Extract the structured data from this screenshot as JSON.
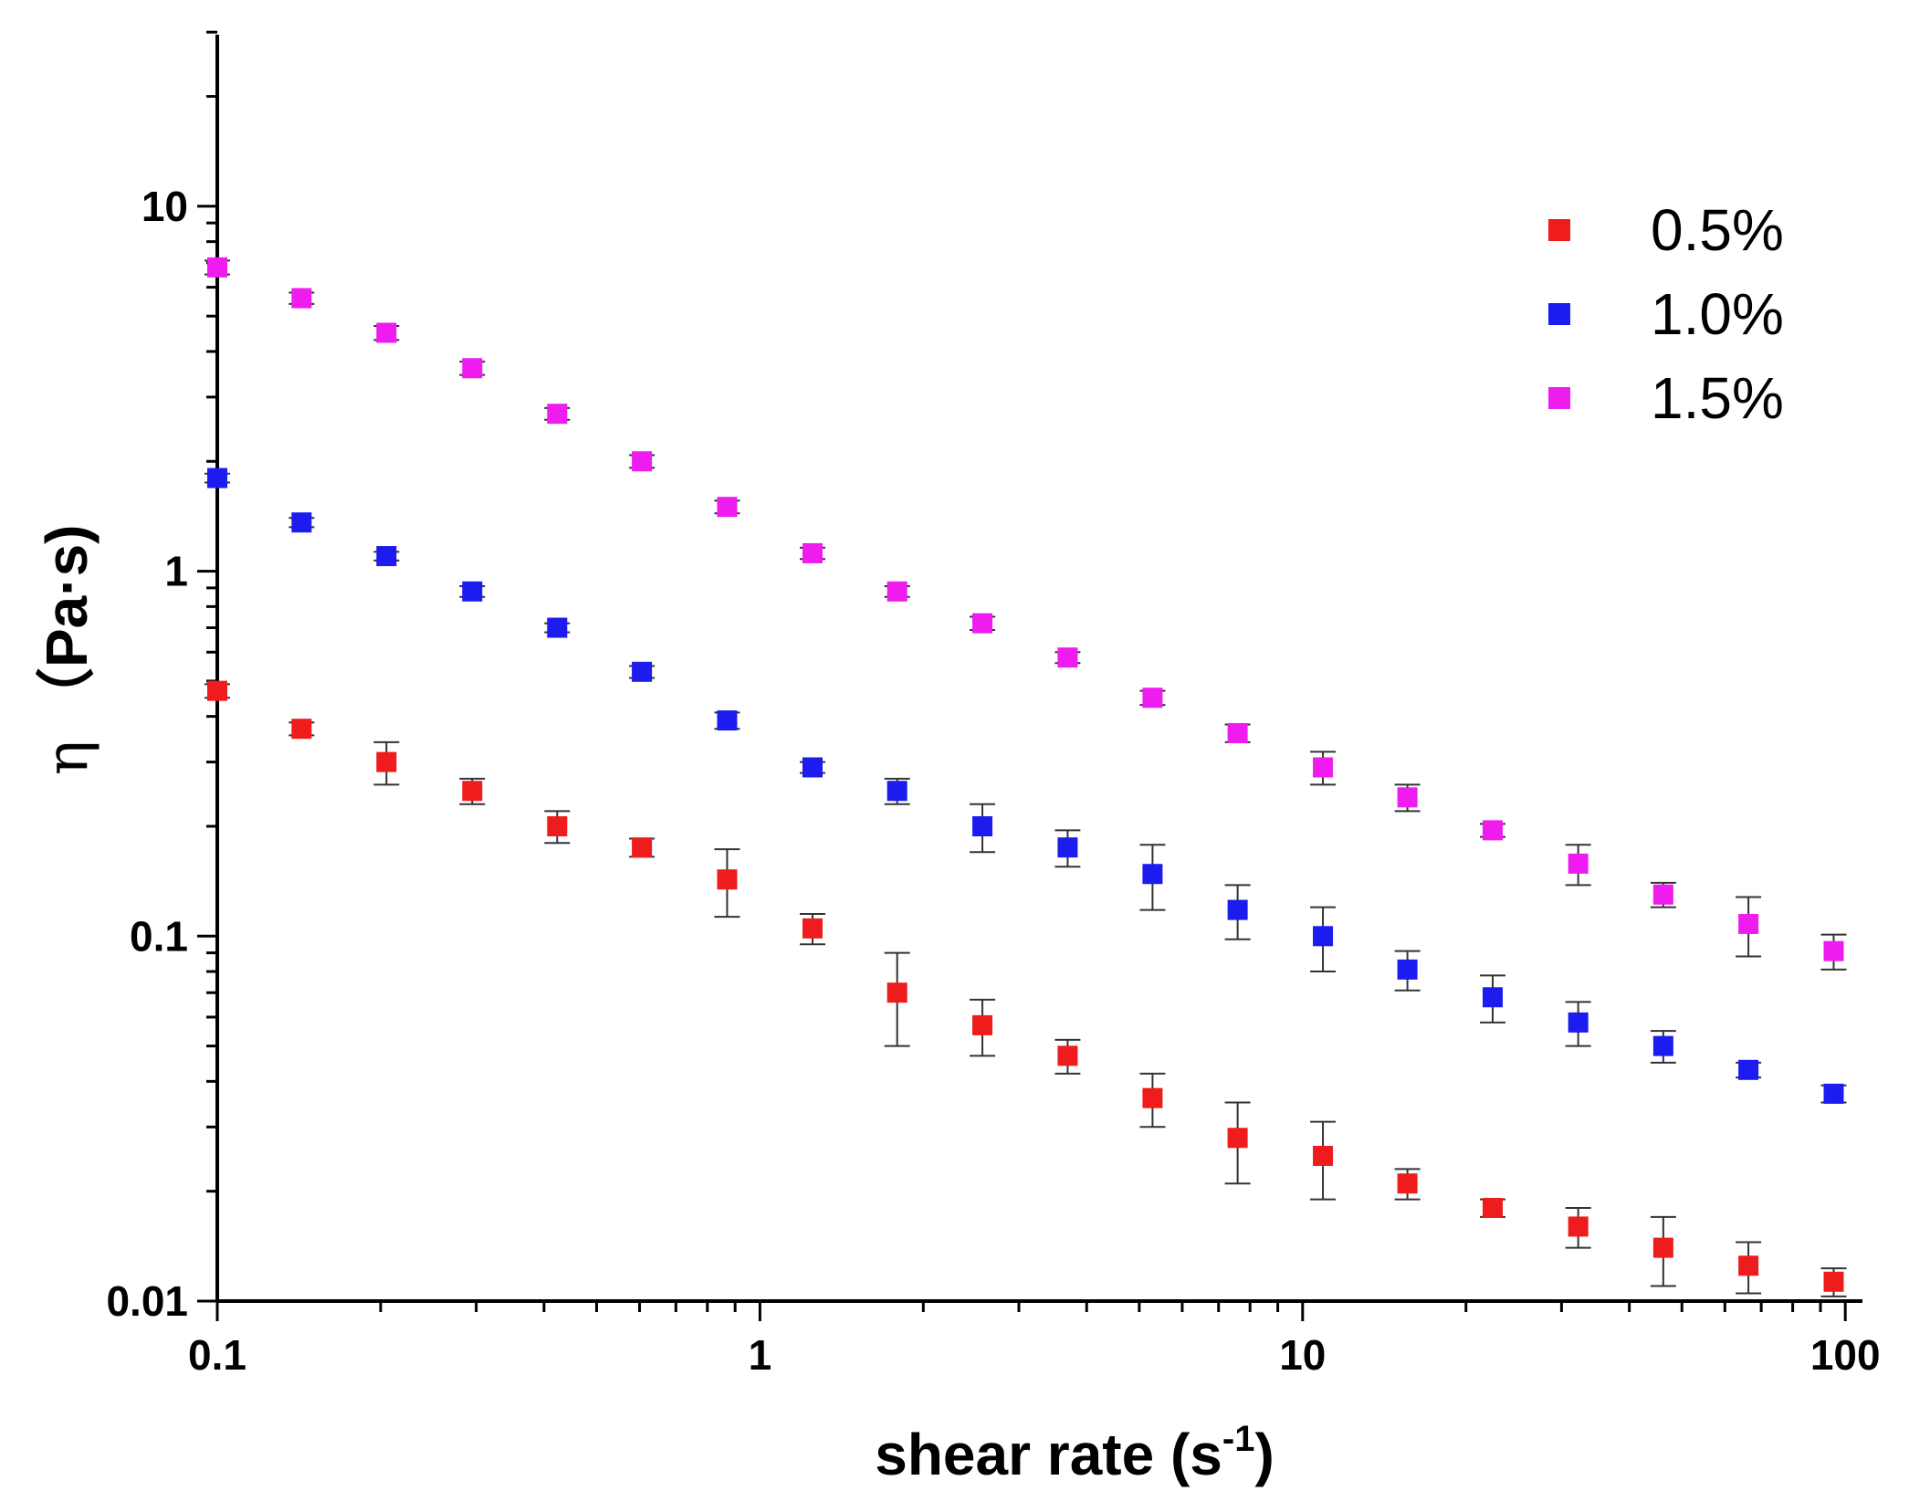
{
  "chart_data": {
    "type": "scatter",
    "title": "",
    "xlabel": "shear rate (s",
    "xlabel_sup": "-1",
    "xlabel_close": ")",
    "ylabel_symbol": "η",
    "ylabel_units": "（Pa·s)",
    "xscale": "log",
    "yscale": "log",
    "xlim": [
      0.1,
      110
    ],
    "ylim": [
      0.01,
      30
    ],
    "x_ticks": [
      {
        "value": 0.1,
        "label": "0.1"
      },
      {
        "value": 1,
        "label": "1"
      },
      {
        "value": 10,
        "label": "10"
      },
      {
        "value": 100,
        "label": "100"
      }
    ],
    "y_ticks": [
      {
        "value": 0.01,
        "label": "0.01"
      },
      {
        "value": 0.1,
        "label": "0.1"
      },
      {
        "value": 1,
        "label": "1"
      },
      {
        "value": 10,
        "label": "10"
      }
    ],
    "legend_position": "top-right",
    "x": [
      0.1,
      0.143,
      0.205,
      0.295,
      0.423,
      0.606,
      0.87,
      1.25,
      1.79,
      2.57,
      3.69,
      5.29,
      7.59,
      10.9,
      15.6,
      22.4,
      32.2,
      46.2,
      66.3,
      95.2
    ],
    "series": [
      {
        "name": "0.5%",
        "color": "#ee1c1c",
        "values": [
          0.47,
          0.37,
          0.3,
          0.25,
          0.2,
          0.175,
          0.143,
          0.105,
          0.07,
          0.057,
          0.047,
          0.036,
          0.028,
          0.025,
          0.021,
          0.018,
          0.016,
          0.014,
          0.0125,
          0.0113
        ],
        "errors": [
          0.02,
          0.015,
          0.04,
          0.02,
          0.02,
          0.01,
          0.03,
          0.01,
          0.02,
          0.01,
          0.005,
          0.006,
          0.007,
          0.006,
          0.002,
          0.001,
          0.002,
          0.003,
          0.002,
          0.001
        ]
      },
      {
        "name": "1.0%",
        "color": "#1c1cee",
        "values": [
          1.8,
          1.36,
          1.1,
          0.88,
          0.7,
          0.53,
          0.39,
          0.29,
          0.25,
          0.2,
          0.175,
          0.148,
          0.118,
          0.1,
          0.081,
          0.068,
          0.058,
          0.05,
          0.043,
          0.037
        ],
        "errors": [
          0.05,
          0.04,
          0.03,
          0.03,
          0.02,
          0.02,
          0.02,
          0.01,
          0.02,
          0.03,
          0.02,
          0.03,
          0.02,
          0.02,
          0.01,
          0.01,
          0.008,
          0.005,
          0.002,
          0.002
        ]
      },
      {
        "name": "1.5%",
        "color": "#ee1cee",
        "values": [
          6.8,
          5.6,
          4.5,
          3.6,
          2.7,
          2.0,
          1.5,
          1.12,
          0.88,
          0.72,
          0.58,
          0.45,
          0.36,
          0.29,
          0.24,
          0.195,
          0.158,
          0.13,
          0.108,
          0.091
        ],
        "errors": [
          0.3,
          0.2,
          0.2,
          0.15,
          0.1,
          0.08,
          0.06,
          0.04,
          0.03,
          0.03,
          0.02,
          0.02,
          0.02,
          0.03,
          0.02,
          0.008,
          0.02,
          0.01,
          0.02,
          0.01
        ]
      }
    ]
  }
}
